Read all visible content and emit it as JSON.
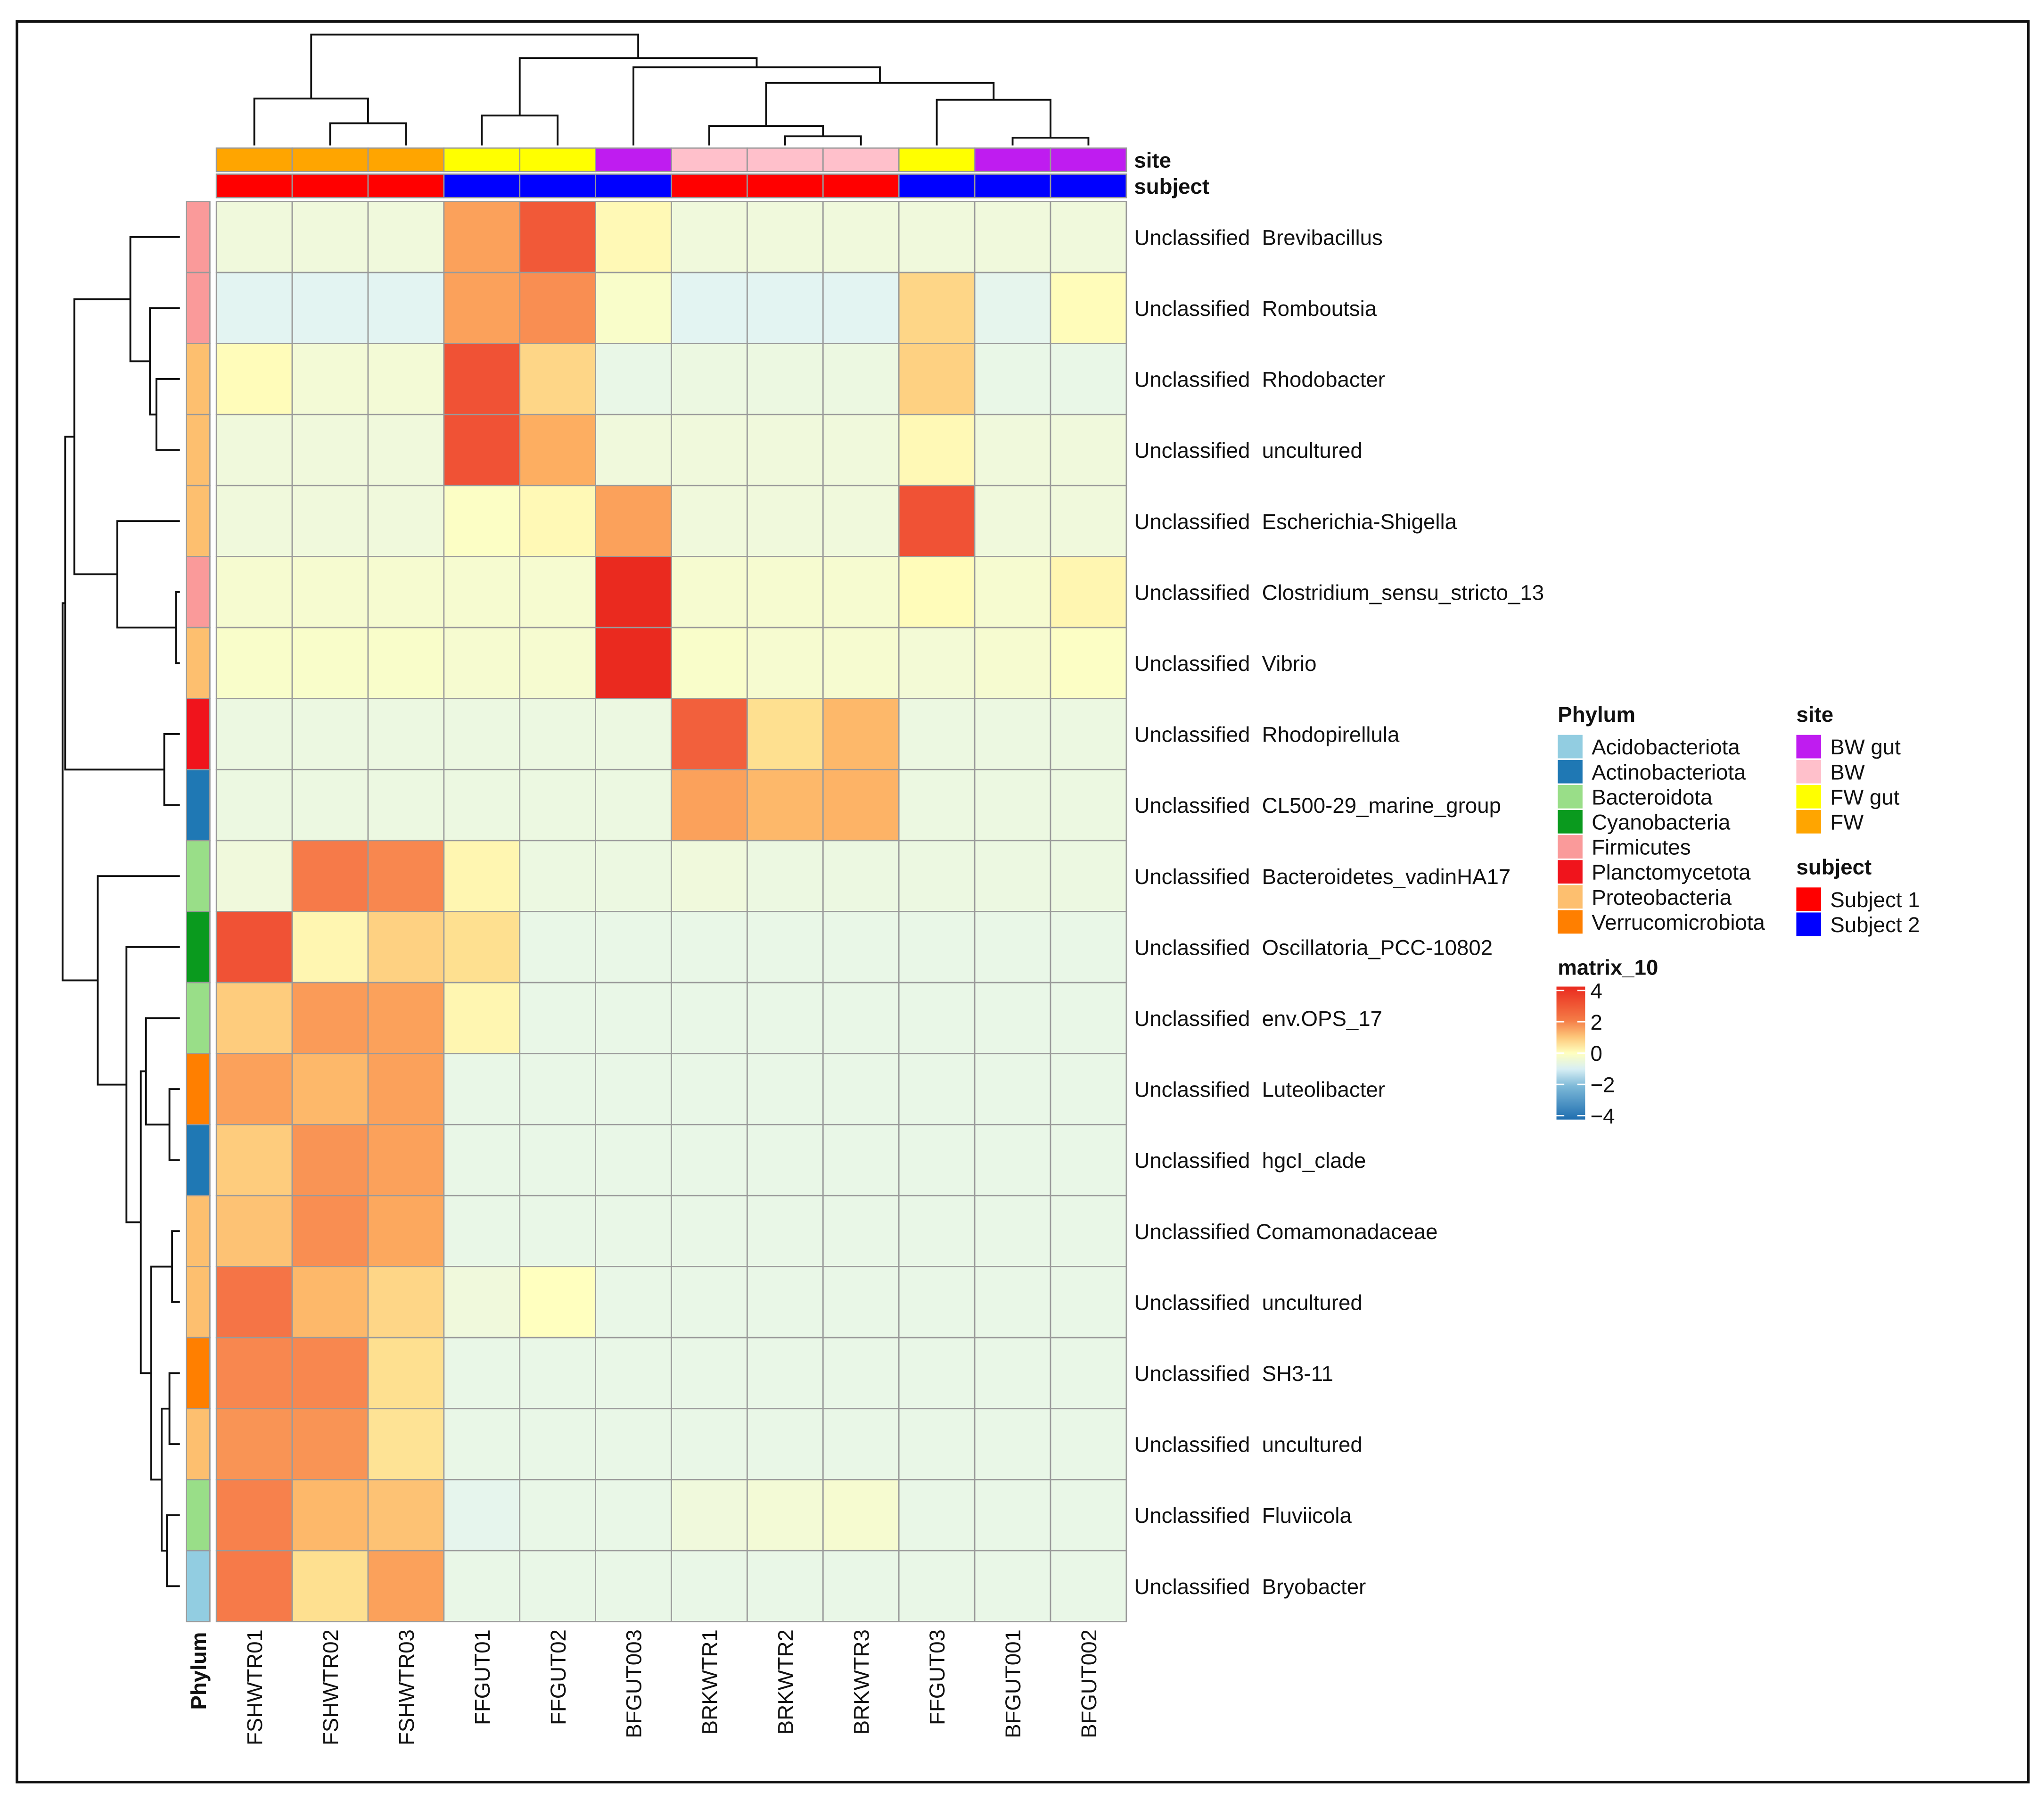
{
  "chart_data": {
    "type": "heatmap",
    "title": "",
    "columns": [
      "FSHWTR01",
      "FSHWTR02",
      "FSHWTR03",
      "FFGUT01",
      "FFGUT02",
      "BFGUT003",
      "BRKWTR1",
      "BRKWTR2",
      "BRKWTR3",
      "FFGUT03",
      "BFGUT001",
      "BFGUT002"
    ],
    "column_site": [
      "FW",
      "FW",
      "FW",
      "FW gut",
      "FW gut",
      "BW gut",
      "BW",
      "BW",
      "BW",
      "FW gut",
      "BW gut",
      "BW gut"
    ],
    "column_subject": [
      "Subject 1",
      "Subject 1",
      "Subject 1",
      "Subject 2",
      "Subject 2",
      "Subject 2",
      "Subject 1",
      "Subject 1",
      "Subject 1",
      "Subject 2",
      "Subject 2",
      "Subject 2"
    ],
    "rows": [
      "Unclassified  Brevibacillus",
      "Unclassified  Romboutsia",
      "Unclassified  Rhodobacter",
      "Unclassified  uncultured",
      "Unclassified  Escherichia-Shigella",
      "Unclassified  Clostridium_sensu_stricto_13",
      "Unclassified  Vibrio",
      "Unclassified  Rhodopirellula",
      "Unclassified  CL500-29_marine_group",
      "Unclassified  Bacteroidetes_vadinHA17",
      "Unclassified  Oscillatoria_PCC-10802",
      "Unclassified  env.OPS_17",
      "Unclassified  Luteolibacter",
      "Unclassified  hgcI_clade",
      "Unclassified Comamonadaceae",
      "Unclassified  uncultured",
      "Unclassified  SH3-11",
      "Unclassified  uncultured",
      "Unclassified  Fluviicola",
      "Unclassified  Bryobacter"
    ],
    "row_phylum": [
      "Firmicutes",
      "Firmicutes",
      "Proteobacteria",
      "Proteobacteria",
      "Proteobacteria",
      "Firmicutes",
      "Proteobacteria",
      "Planctomycetota",
      "Actinobacteriota",
      "Bacteroidota",
      "Cyanobacteria",
      "Bacteroidota",
      "Verrucomicrobiota",
      "Actinobacteriota",
      "Proteobacteria",
      "Proteobacteria",
      "Verrucomicrobiota",
      "Proteobacteria",
      "Bacteroidota",
      "Acidobacteriota"
    ],
    "values": [
      [
        -0.5,
        -0.5,
        -0.5,
        2.2,
        3.3,
        0.2,
        -0.5,
        -0.5,
        -0.5,
        -0.5,
        -0.5,
        -0.5
      ],
      [
        -0.9,
        -0.9,
        -0.9,
        2.2,
        2.5,
        -0.2,
        -0.9,
        -0.9,
        -0.9,
        1.2,
        -0.8,
        0.1
      ],
      [
        0.1,
        -0.4,
        -0.4,
        3.4,
        1.2,
        -0.7,
        -0.6,
        -0.6,
        -0.6,
        1.3,
        -0.7,
        -0.7
      ],
      [
        -0.5,
        -0.5,
        -0.5,
        3.4,
        2.0,
        -0.5,
        -0.5,
        -0.5,
        -0.5,
        0.2,
        -0.5,
        -0.5
      ],
      [
        -0.5,
        -0.5,
        -0.5,
        -0.1,
        0.2,
        2.2,
        -0.5,
        -0.5,
        -0.5,
        3.4,
        -0.5,
        -0.5
      ],
      [
        -0.3,
        -0.3,
        -0.3,
        -0.3,
        -0.3,
        4.0,
        -0.3,
        -0.3,
        -0.3,
        0.1,
        -0.3,
        0.3
      ],
      [
        -0.2,
        -0.2,
        -0.2,
        -0.3,
        -0.3,
        4.0,
        -0.2,
        -0.3,
        -0.3,
        -0.4,
        -0.3,
        -0.1
      ],
      [
        -0.6,
        -0.6,
        -0.6,
        -0.6,
        -0.6,
        -0.6,
        3.2,
        1.0,
        1.8,
        -0.6,
        -0.6,
        -0.6
      ],
      [
        -0.6,
        -0.6,
        -0.6,
        -0.6,
        -0.6,
        -0.6,
        2.2,
        1.8,
        1.9,
        -0.6,
        -0.6,
        -0.6
      ],
      [
        -0.5,
        2.8,
        2.6,
        0.3,
        -0.6,
        -0.6,
        -0.5,
        -0.6,
        -0.6,
        -0.6,
        -0.6,
        -0.6
      ],
      [
        3.4,
        0.3,
        1.3,
        1.0,
        -0.7,
        -0.7,
        -0.7,
        -0.7,
        -0.7,
        -0.7,
        -0.7,
        -0.7
      ],
      [
        1.4,
        2.3,
        2.2,
        0.3,
        -0.7,
        -0.7,
        -0.7,
        -0.7,
        -0.7,
        -0.7,
        -0.7,
        -0.7
      ],
      [
        2.2,
        1.8,
        2.2,
        -0.7,
        -0.7,
        -0.7,
        -0.7,
        -0.7,
        -0.7,
        -0.7,
        -0.7,
        -0.7
      ],
      [
        1.4,
        2.4,
        2.2,
        -0.7,
        -0.7,
        -0.7,
        -0.7,
        -0.7,
        -0.7,
        -0.7,
        -0.7,
        -0.7
      ],
      [
        1.6,
        2.5,
        2.1,
        -0.7,
        -0.7,
        -0.7,
        -0.7,
        -0.7,
        -0.7,
        -0.7,
        -0.7,
        -0.7
      ],
      [
        2.9,
        1.8,
        1.2,
        -0.5,
        0.0,
        -0.7,
        -0.7,
        -0.7,
        -0.7,
        -0.7,
        -0.7,
        -0.7
      ],
      [
        2.6,
        2.6,
        1.0,
        -0.7,
        -0.7,
        -0.7,
        -0.7,
        -0.7,
        -0.7,
        -0.7,
        -0.7,
        -0.7
      ],
      [
        2.4,
        2.4,
        0.9,
        -0.7,
        -0.7,
        -0.7,
        -0.7,
        -0.7,
        -0.7,
        -0.7,
        -0.7,
        -0.7
      ],
      [
        2.7,
        1.8,
        1.6,
        -0.8,
        -0.7,
        -0.7,
        -0.5,
        -0.4,
        -0.3,
        -0.7,
        -0.7,
        -0.7
      ],
      [
        2.8,
        1.0,
        2.2,
        -0.7,
        -0.7,
        -0.7,
        -0.7,
        -0.7,
        -0.7,
        -0.7,
        -0.7,
        -0.7
      ]
    ],
    "color_scale": {
      "title": "matrix_10",
      "range": [
        -4,
        4
      ],
      "ticks": [
        "4",
        "2",
        "0",
        "−2",
        "−4"
      ]
    },
    "annotation_labels": {
      "site": "site",
      "subject": "subject",
      "phylum": "Phylum"
    },
    "legends": {
      "phylum": {
        "title": "Phylum",
        "items": [
          {
            "label": "Acidobacteriota",
            "color": "#92cde1"
          },
          {
            "label": "Actinobacteriota",
            "color": "#1f78b4"
          },
          {
            "label": "Bacteroidota",
            "color": "#99de88"
          },
          {
            "label": "Cyanobacteria",
            "color": "#0a9a1e"
          },
          {
            "label": "Firmicutes",
            "color": "#fa9a9a"
          },
          {
            "label": "Planctomycetota",
            "color": "#f0141c"
          },
          {
            "label": "Proteobacteria",
            "color": "#fdbf6f"
          },
          {
            "label": "Verrucomicrobiota",
            "color": "#ff7f00"
          }
        ]
      },
      "site": {
        "title": "site",
        "items": [
          {
            "label": "BW gut",
            "color": "#bf1cf0"
          },
          {
            "label": "BW",
            "color": "#ffc0cb"
          },
          {
            "label": "FW gut",
            "color": "#ffff00"
          },
          {
            "label": "FW",
            "color": "#ffa500"
          }
        ]
      },
      "subject": {
        "title": "subject",
        "items": [
          {
            "label": "Subject 1",
            "color": "#ff0000"
          },
          {
            "label": "Subject 2",
            "color": "#0000ff"
          }
        ]
      }
    }
  }
}
